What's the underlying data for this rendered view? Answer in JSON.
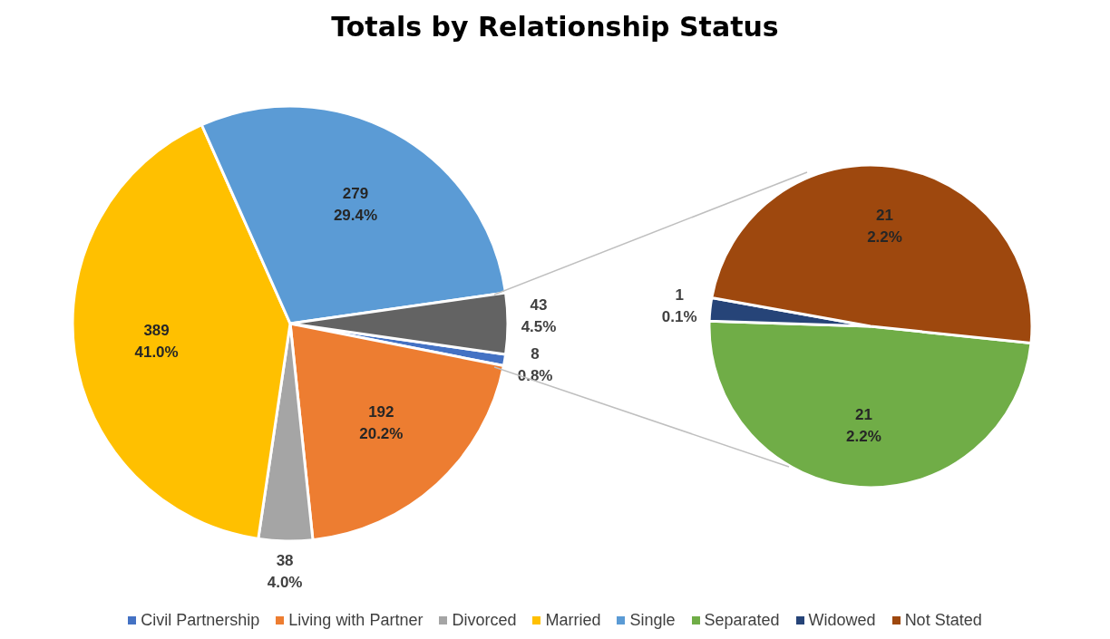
{
  "chart_data": [
    {
      "type": "pie",
      "title": "Totals by Relationship Status",
      "categories": [
        "Civil Partnership",
        "Living with Partner",
        "Divorced",
        "Married",
        "Single",
        null
      ],
      "values": [
        8,
        192,
        38,
        389,
        279,
        43
      ],
      "colors": [
        "#4472c4",
        "#ed7d31",
        "#a5a5a5",
        "#ffc000",
        "#5b9bd5",
        "#636363"
      ],
      "value_labels": [
        "8\n0.8%",
        "192\n20.2%",
        "38\n4.0%",
        "389\n41.0%",
        "279\n29.4%",
        "43\n4.5%"
      ],
      "legend": "bottom"
    },
    {
      "type": "pie",
      "categories": [
        "Separated",
        "Widowed",
        "Not Stated"
      ],
      "values": [
        21,
        1,
        21
      ],
      "colors": [
        "#70ad47",
        "#264478",
        "#9e480e"
      ],
      "value_labels": [
        "21\n2.2%",
        "1\n0.1%",
        "21\n2.2%"
      ],
      "legend": "bottom"
    }
  ]
}
